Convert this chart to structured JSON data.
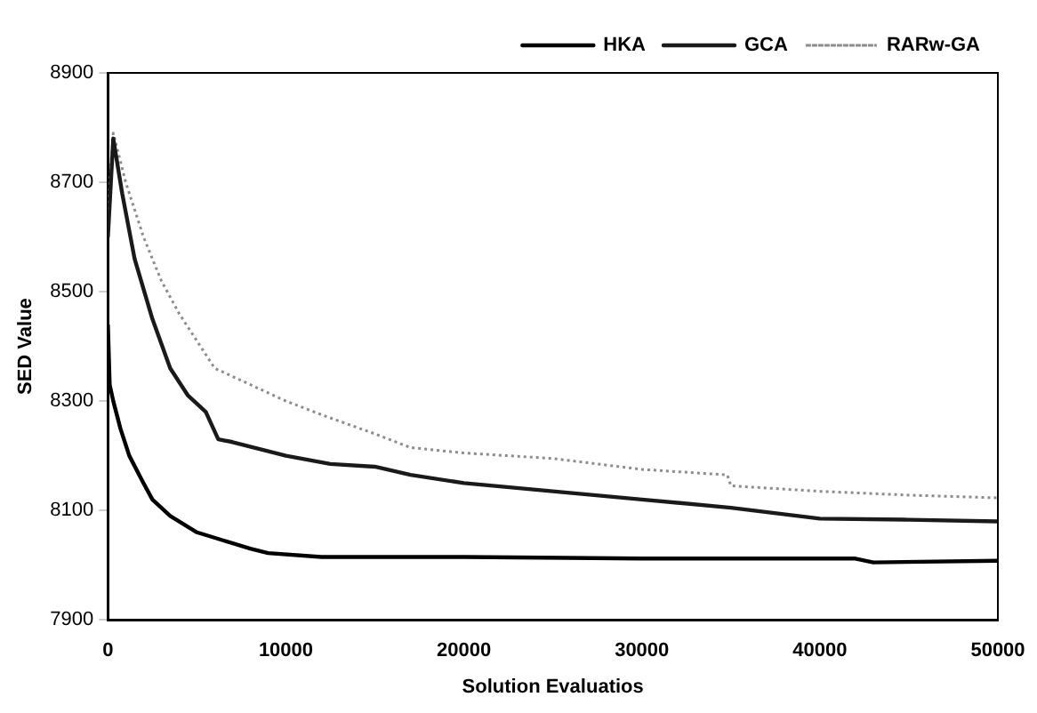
{
  "chart_data": {
    "type": "line",
    "xlabel": "Solution Evaluatios",
    "ylabel": "SED Value",
    "xlim": [
      0,
      50000
    ],
    "xticks": [
      0,
      10000,
      20000,
      30000,
      40000,
      50000
    ],
    "ylim": [
      7900,
      8900
    ],
    "yticks": [
      7900,
      8100,
      8300,
      8500,
      8700,
      8900
    ],
    "grid": false,
    "legend": "top right",
    "marker": "none",
    "series": [
      {
        "name": "HKA",
        "color": "#000000",
        "line_style": "solid",
        "x": [
          0,
          100,
          300,
          700,
          1200,
          2000,
          2500,
          3500,
          5000,
          6500,
          8000,
          9000,
          12000,
          20000,
          30000,
          42000,
          43000,
          50000
        ],
        "values": [
          8440,
          8330,
          8300,
          8250,
          8200,
          8150,
          8120,
          8090,
          8060,
          8045,
          8030,
          8022,
          8015,
          8015,
          8012,
          8012,
          8005,
          8008
        ]
      },
      {
        "name": "GCA",
        "color": "#1a1a1a",
        "line_style": "solid",
        "x": [
          0,
          300,
          800,
          1500,
          2500,
          3500,
          4500,
          5500,
          6200,
          7000,
          10000,
          12500,
          15000,
          17000,
          20000,
          25000,
          30000,
          35000,
          40000,
          45000,
          50000
        ],
        "values": [
          8600,
          8780,
          8680,
          8560,
          8450,
          8360,
          8310,
          8280,
          8230,
          8225,
          8200,
          8185,
          8180,
          8165,
          8150,
          8135,
          8120,
          8105,
          8085,
          8083,
          8080
        ]
      },
      {
        "name": "RARw-GA",
        "color": "#8c8c8c",
        "line_style": "dotted",
        "x": [
          0,
          300,
          1000,
          2000,
          3000,
          4000,
          5000,
          6000,
          8000,
          10000,
          12000,
          15000,
          17000,
          20000,
          25000,
          30000,
          34800,
          35000,
          40000,
          45000,
          50000
        ],
        "values": [
          8650,
          8790,
          8700,
          8600,
          8520,
          8460,
          8410,
          8360,
          8330,
          8300,
          8275,
          8240,
          8215,
          8205,
          8195,
          8175,
          8165,
          8145,
          8135,
          8128,
          8123
        ]
      }
    ]
  }
}
